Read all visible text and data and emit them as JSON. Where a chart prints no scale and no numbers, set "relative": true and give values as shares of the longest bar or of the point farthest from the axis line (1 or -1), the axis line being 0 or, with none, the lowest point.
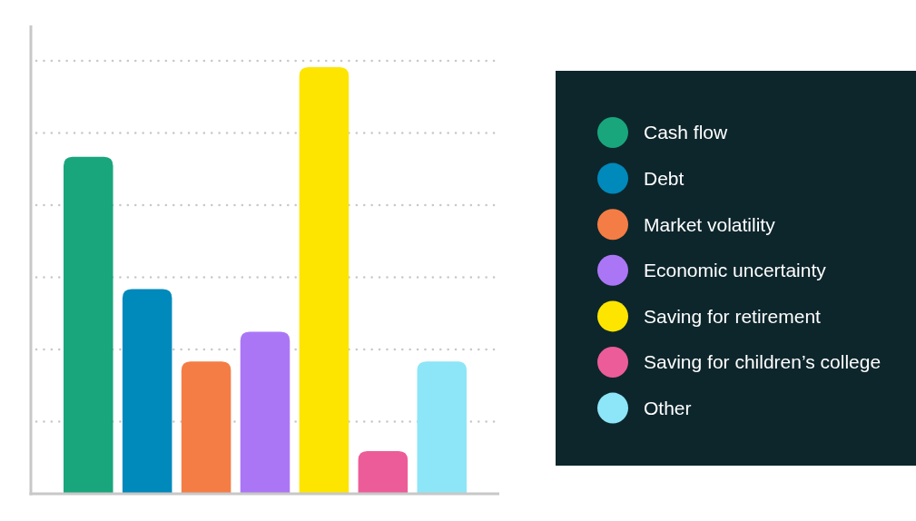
{
  "chart_data": {
    "type": "bar",
    "relative": true,
    "categories": [
      null,
      null,
      null,
      null,
      null,
      null,
      null
    ],
    "series": [
      {
        "name": "Cash flow",
        "color": "#19a67c",
        "values": [
          0.79,
          null,
          null,
          null,
          null,
          null,
          null
        ]
      },
      {
        "name": "Debt",
        "color": "#0089bb",
        "values": [
          null,
          0.48,
          null,
          null,
          null,
          null,
          null
        ]
      },
      {
        "name": "Market volatility",
        "color": "#f47d45",
        "values": [
          null,
          null,
          0.31,
          null,
          null,
          null,
          null
        ]
      },
      {
        "name": "Economic uncertainty",
        "color": "#ab76f6",
        "values": [
          null,
          null,
          null,
          0.38,
          null,
          null,
          null
        ]
      },
      {
        "name": "Saving for retirement",
        "color": "#fde500",
        "values": [
          null,
          null,
          null,
          null,
          1,
          null,
          null
        ]
      },
      {
        "name": "Saving for children’s college",
        "color": "#ec5c98",
        "values": [
          null,
          null,
          null,
          null,
          null,
          0.1,
          null
        ]
      },
      {
        "name": "Other",
        "color": "#8ce6f7",
        "values": [
          null,
          null,
          null,
          null,
          null,
          null,
          0.31
        ]
      }
    ],
    "stacked": true,
    "grid": "y",
    "legend": "right"
  }
}
